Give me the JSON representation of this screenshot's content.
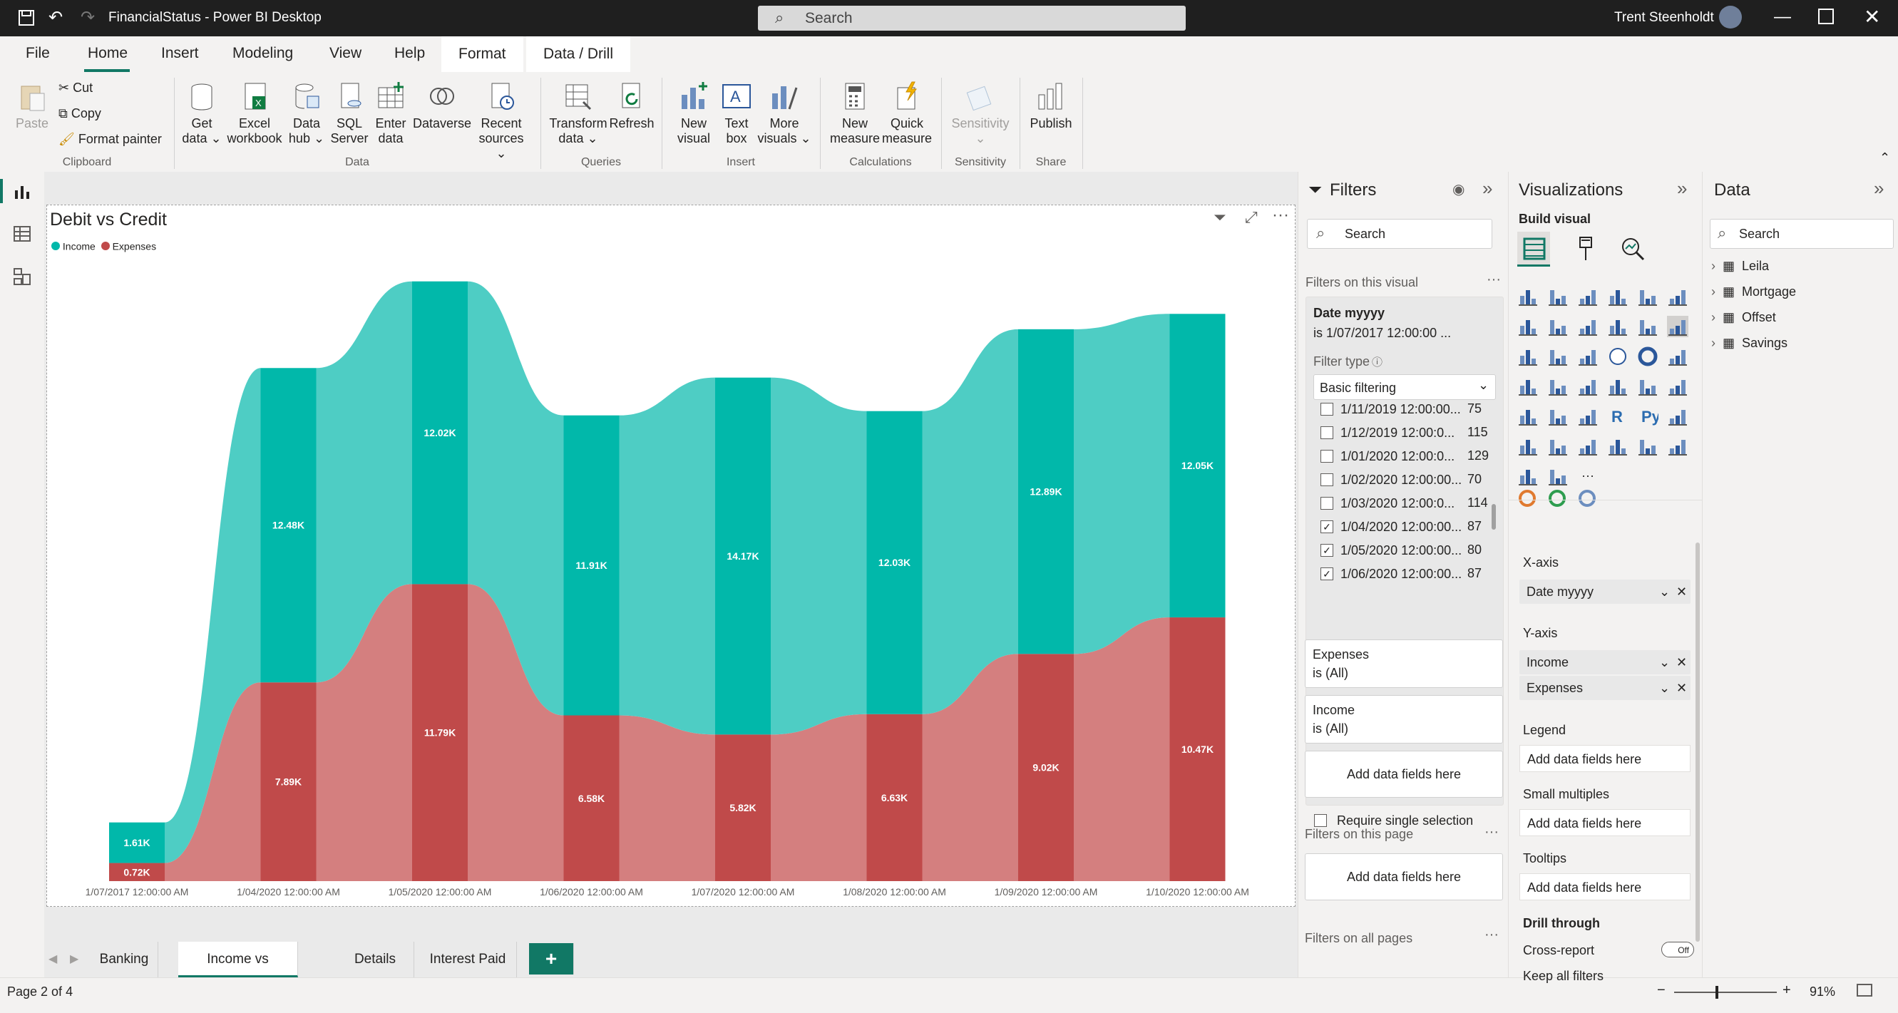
{
  "window": {
    "title": "FinancialStatus - Power BI Desktop",
    "search_placeholder": "Search",
    "user": "Trent Steenholdt"
  },
  "ribbon_tabs": [
    "File",
    "Home",
    "Insert",
    "Modeling",
    "View",
    "Help",
    "Format",
    "Data / Drill"
  ],
  "ribbon": {
    "clipboard": {
      "paste": "Paste",
      "cut": "Cut",
      "copy": "Copy",
      "format_painter": "Format painter",
      "group": "Clipboard"
    },
    "data": {
      "get_data": [
        "Get",
        "data"
      ],
      "excel": [
        "Excel",
        "workbook"
      ],
      "data_hub": [
        "Data",
        "hub"
      ],
      "sql": [
        "SQL",
        "Server"
      ],
      "enter": [
        "Enter",
        "data"
      ],
      "dataverse": "Dataverse",
      "recent": [
        "Recent",
        "sources"
      ],
      "group": "Data"
    },
    "queries": {
      "transform": [
        "Transform",
        "data"
      ],
      "refresh": "Refresh",
      "group": "Queries"
    },
    "insert": {
      "new_visual": [
        "New",
        "visual"
      ],
      "text_box": [
        "Text",
        "box"
      ],
      "more": [
        "More",
        "visuals"
      ],
      "group": "Insert"
    },
    "calculations": {
      "new_measure": [
        "New",
        "measure"
      ],
      "quick_measure": [
        "Quick",
        "measure"
      ],
      "group": "Calculations"
    },
    "sensitivity": {
      "label": "Sensitivity",
      "group": "Sensitivity"
    },
    "share": {
      "publish": "Publish",
      "group": "Share"
    }
  },
  "visual": {
    "title": "Debit vs Credit",
    "legend": [
      {
        "name": "Income",
        "color": "#01b8aa"
      },
      {
        "name": "Expenses",
        "color": "#c04a4a"
      }
    ]
  },
  "chart_data": {
    "type": "ribbon",
    "title": "Debit vs Credit",
    "categories": [
      "1/07/2017 12:00:00 AM",
      "1/04/2020 12:00:00 AM",
      "1/05/2020 12:00:00 AM",
      "1/06/2020 12:00:00 AM",
      "1/07/2020 12:00:00 AM",
      "1/08/2020 12:00:00 AM",
      "1/09/2020 12:00:00 AM",
      "1/10/2020 12:00:00 AM"
    ],
    "series": [
      {
        "name": "Income",
        "color": "#01b8aa",
        "values": [
          1.61,
          12.48,
          12.02,
          11.91,
          14.17,
          12.03,
          12.89,
          12.05
        ],
        "labels": [
          "1.61K",
          "12.48K",
          "12.02K",
          "11.91K",
          "14.17K",
          "12.03K",
          "12.89K",
          "12.05K"
        ]
      },
      {
        "name": "Expenses",
        "color": "#c04a4a",
        "values": [
          0.72,
          7.89,
          11.79,
          6.58,
          5.82,
          6.63,
          9.02,
          10.47
        ],
        "labels": [
          "0.72K",
          "7.89K",
          "11.79K",
          "6.58K",
          "5.82K",
          "6.63K",
          "9.02K",
          "10.47K"
        ]
      }
    ],
    "ylim": [
      0,
      24
    ],
    "legend_position": "top-left"
  },
  "page_tabs": [
    "Banking",
    "Income vs Expenses",
    "Details",
    "Interest Paid"
  ],
  "add_page": "+",
  "status": {
    "page": "Page 2 of 4",
    "zoom": "91%"
  },
  "filters": {
    "title": "Filters",
    "search": "Search",
    "on_visual": "Filters on this visual",
    "date_field": "Date myyyy",
    "date_summary": "is 1/07/2017 12:00:00 ...",
    "filter_type_label": "Filter type",
    "filter_type": "Basic filtering",
    "items": [
      {
        "label": "1/11/2019 12:00:00...",
        "count": "75",
        "checked": false
      },
      {
        "label": "1/12/2019 12:00:0...",
        "count": "115",
        "checked": false
      },
      {
        "label": "1/01/2020 12:00:0...",
        "count": "129",
        "checked": false
      },
      {
        "label": "1/02/2020 12:00:00...",
        "count": "70",
        "checked": false
      },
      {
        "label": "1/03/2020 12:00:0...",
        "count": "114",
        "checked": false
      },
      {
        "label": "1/04/2020 12:00:00...",
        "count": "87",
        "checked": true
      },
      {
        "label": "1/05/2020 12:00:00...",
        "count": "80",
        "checked": true
      },
      {
        "label": "1/06/2020 12:00:00...",
        "count": "87",
        "checked": true
      }
    ],
    "require_single": "Require single selection",
    "expenses": {
      "name": "Expenses",
      "value": "is (All)"
    },
    "income": {
      "name": "Income",
      "value": "is (All)"
    },
    "add_fields": "Add data fields here",
    "on_page": "Filters on this page",
    "on_all": "Filters on all pages"
  },
  "visualizations": {
    "title": "Visualizations",
    "build": "Build visual",
    "xaxis": "X-axis",
    "xaxis_field": "Date myyyy",
    "yaxis": "Y-axis",
    "yaxis_fields": [
      "Income",
      "Expenses"
    ],
    "legend": "Legend",
    "small_multiples": "Small multiples",
    "tooltips": "Tooltips",
    "add_fields": "Add data fields here",
    "drill": "Drill through",
    "cross_report": "Cross-report",
    "cross_report_state": "Off",
    "keep_filters": "Keep all filters",
    "more": "···"
  },
  "data_pane": {
    "title": "Data",
    "search": "Search",
    "tables": [
      "Leila",
      "Mortgage",
      "Offset",
      "Savings"
    ]
  }
}
